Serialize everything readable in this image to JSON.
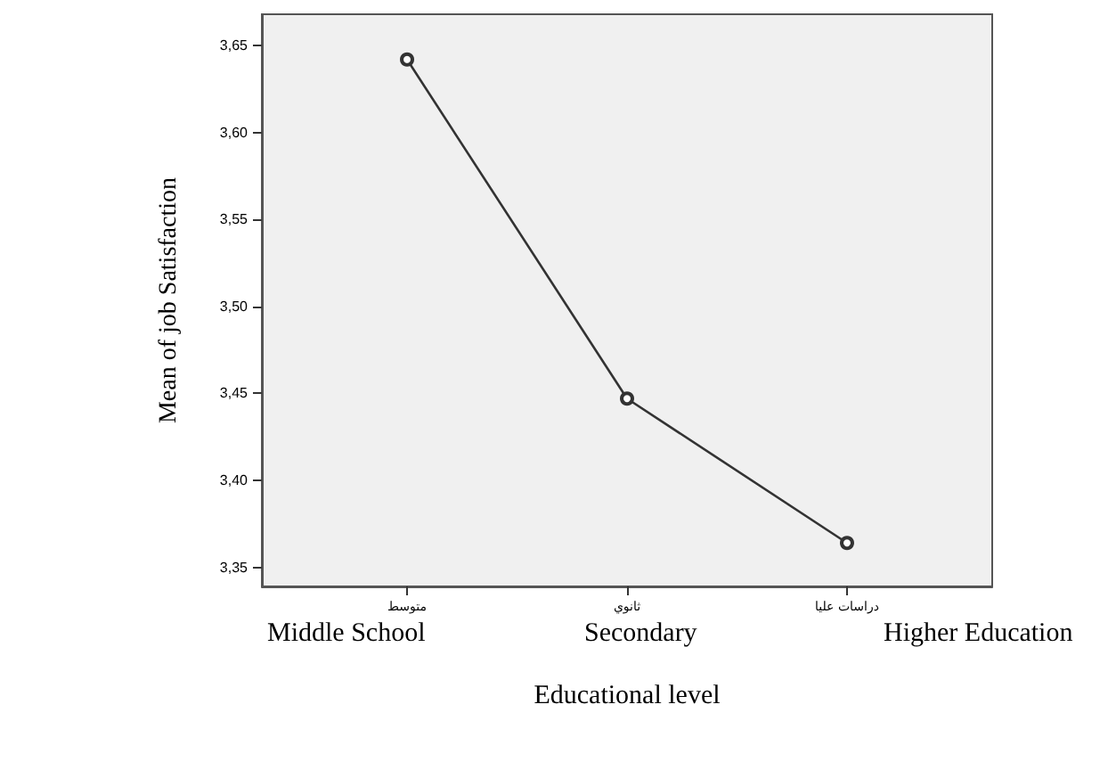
{
  "chart_data": {
    "type": "line",
    "xlabel": "Educational level",
    "ylabel": "Mean of job Satisfaction",
    "categories": [
      "متوسط",
      "ثانوي",
      "دراسات عليا"
    ],
    "series": [
      {
        "color": "#333333",
        "values": [
          3.642,
          3.447,
          3.364
        ]
      }
    ],
    "ylim": [
      3.339,
      3.668
    ],
    "yticks": [
      {
        "value": 3.35,
        "label": "3,35"
      },
      {
        "value": 3.4,
        "label": "3,40"
      },
      {
        "value": 3.45,
        "label": "3,45"
      },
      {
        "value": 3.5,
        "label": "3,50"
      },
      {
        "value": 3.55,
        "label": "3,55"
      },
      {
        "value": 3.6,
        "label": "3,60"
      },
      {
        "value": 3.65,
        "label": "3,65"
      }
    ],
    "annotations": [
      "Middle School",
      "Secondary",
      "Higher Education"
    ],
    "grid": false,
    "marker": "circle",
    "line_style": "solid"
  }
}
